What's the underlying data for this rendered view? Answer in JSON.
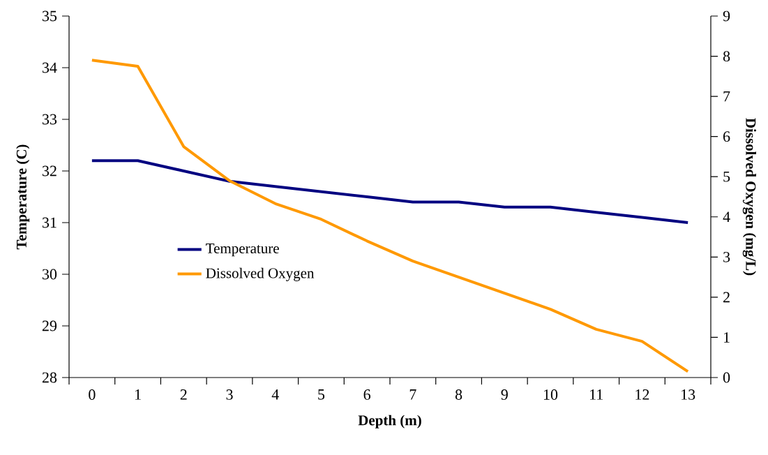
{
  "chart_data": {
    "type": "line",
    "categories": [
      "0",
      "1",
      "2",
      "3",
      "4",
      "5",
      "6",
      "7",
      "8",
      "9",
      "10",
      "11",
      "12",
      "13"
    ],
    "xlabel": "Depth (m)",
    "ylabel": "Temperature (C)",
    "y2label": "Dissolved Oxygen (mg/L)",
    "series": [
      {
        "name": "Temperature",
        "color": "#000080",
        "values": [
          32.2,
          32.2,
          32.0,
          31.8,
          31.7,
          31.6,
          31.5,
          31.4,
          31.4,
          31.3,
          31.3,
          31.2,
          31.1,
          31.0
        ]
      },
      {
        "name": "Dissolved Oxygen",
        "color": "#ff9900",
        "axis": "y2",
        "values": [
          7.9,
          7.75,
          5.75,
          4.9,
          4.33,
          3.94,
          3.4,
          2.9,
          2.5,
          2.1,
          1.7,
          1.2,
          0.9,
          0.15
        ]
      }
    ],
    "ylim": [
      28,
      35
    ],
    "yticks": [
      28,
      29,
      30,
      31,
      32,
      33,
      34,
      35
    ],
    "y2lim": [
      0,
      9
    ],
    "y2ticks": [
      0,
      1,
      2,
      3,
      4,
      5,
      6,
      7,
      8,
      9
    ],
    "grid": false,
    "legend": "left",
    "marker": "none",
    "line_style": "solid"
  }
}
